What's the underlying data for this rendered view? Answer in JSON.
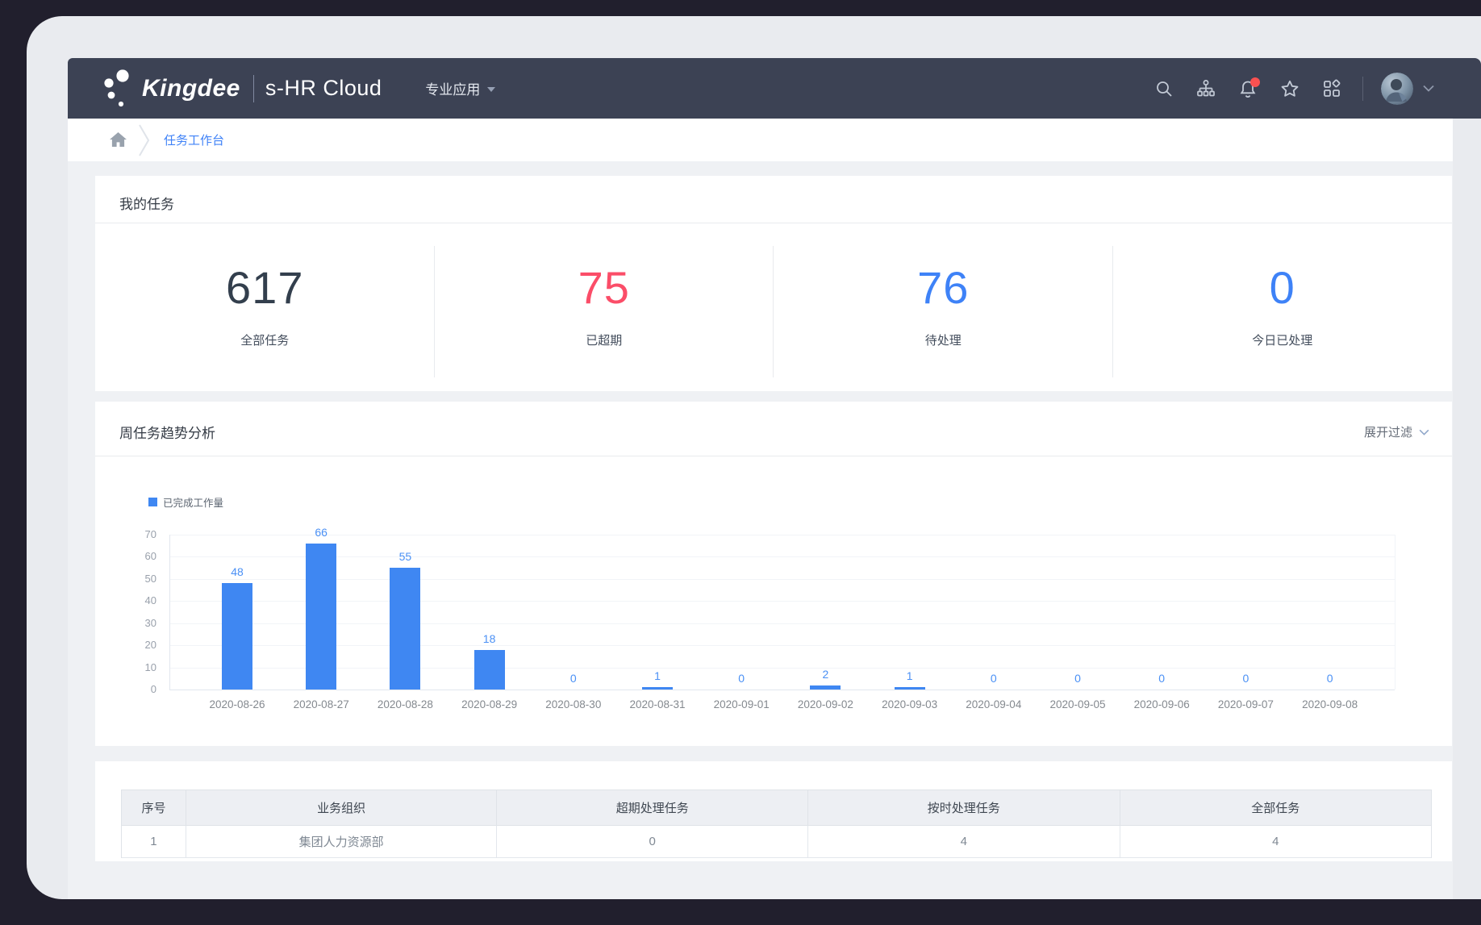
{
  "navbar": {
    "brand": "Kingdee",
    "product": "s-HR Cloud",
    "menu": "专业应用",
    "bg_color": "#3c4254",
    "icon_color": "#c3cad6",
    "bell_badge_color": "#fa5151",
    "icons": [
      "search-icon",
      "org-chart-icon",
      "bell-icon",
      "star-icon",
      "apps-grid-icon",
      "avatar",
      "chevron-down-icon"
    ]
  },
  "breadcrumb": {
    "current": "任务工作台",
    "link_color": "#3f82f7"
  },
  "my_tasks": {
    "title": "我的任务",
    "stats": [
      {
        "value": "617",
        "label": "全部任务",
        "color": "#333f4d"
      },
      {
        "value": "75",
        "label": "已超期",
        "color": "#fb4d68"
      },
      {
        "value": "76",
        "label": "待处理",
        "color": "#3e82f7"
      },
      {
        "value": "0",
        "label": "今日已处理",
        "color": "#3e82f7"
      }
    ]
  },
  "trend_card": {
    "title": "周任务趋势分析",
    "filter_toggle": "展开过滤"
  },
  "chart_data": {
    "type": "bar",
    "title": "周任务趋势分析",
    "legend": [
      "已完成工作量"
    ],
    "legend_position": "top-left",
    "categories": [
      "2020-08-26",
      "2020-08-27",
      "2020-08-28",
      "2020-08-29",
      "2020-08-30",
      "2020-08-31",
      "2020-09-01",
      "2020-09-02",
      "2020-09-03",
      "2020-09-04",
      "2020-09-05",
      "2020-09-06",
      "2020-09-07",
      "2020-09-08"
    ],
    "values": [
      48,
      66,
      55,
      18,
      0,
      1,
      0,
      2,
      1,
      0,
      0,
      0,
      0,
      0
    ],
    "xlabel": "",
    "ylabel": "",
    "ylim": [
      0,
      70
    ],
    "ytick_step": 10,
    "grid": true,
    "bar_color": "#3f87f2",
    "value_label_color": "#4a90f5"
  },
  "org_table": {
    "columns": [
      "序号",
      "业务组织",
      "超期处理任务",
      "按时处理任务",
      "全部任务"
    ],
    "rows": [
      [
        "1",
        "集团人力资源部",
        "0",
        "4",
        "4"
      ]
    ]
  }
}
